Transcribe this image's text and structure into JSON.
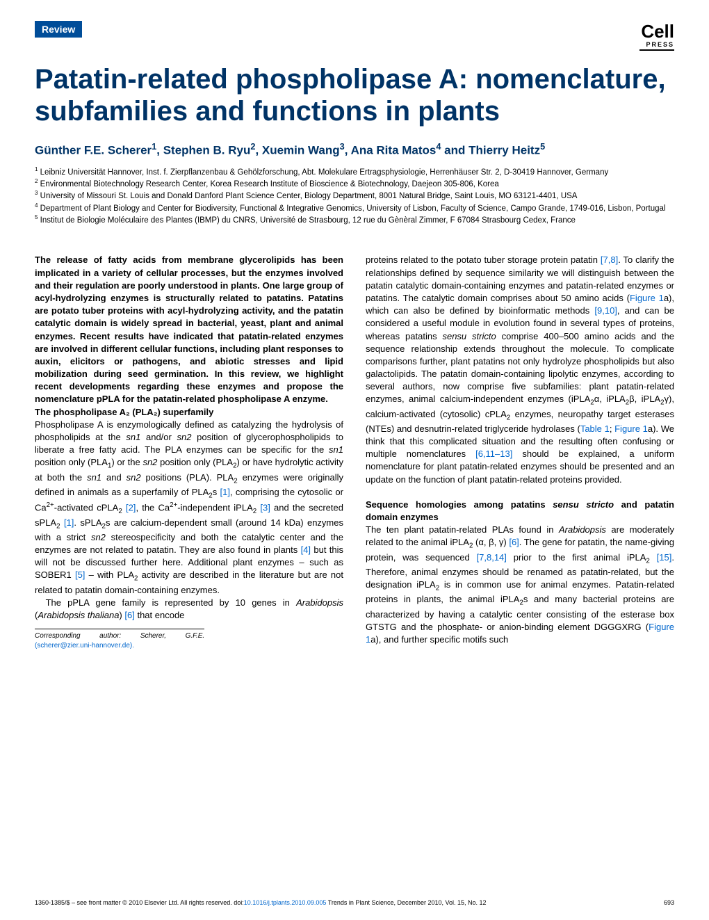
{
  "header": {
    "badge": "Review",
    "logo_main": "Cell",
    "logo_sub": "PRESS"
  },
  "title": "Patatin-related phospholipase A: nomenclature, subfamilies and functions in plants",
  "authors_html": "Günther F.E. Scherer<sup>1</sup>, Stephen B. Ryu<sup>2</sup>, Xuemin Wang<sup>3</sup>, Ana Rita Matos<sup>4</sup> and Thierry Heitz<sup>5</sup>",
  "affiliations": [
    "Leibniz Universität Hannover, Inst. f. Zierpflanzenbau & Gehölzforschung, Abt. Molekulare Ertragsphysiologie, Herrenhäuser Str. 2, D-30419 Hannover, Germany",
    "Environmental Biotechnology Research Center, Korea Research Institute of Bioscience & Biotechnology, Daejeon 305-806, Korea",
    "University of Missouri St. Louis and Donald Danford Plant Science Center, Biology Department, 8001 Natural Bridge, Saint Louis, MO 63121-4401, USA",
    "Department of Plant Biology and Center for Biodiversity, Functional & Integrative Genomics, University of Lisbon, Faculty of Science, Campo Grande, 1749-016, Lisbon, Portugal",
    "Institut de Biologie Moléculaire des Plantes (IBMP) du CNRS, Université de Strasbourg, 12 rue du Gènèral Zimmer, F 67084 Strasbourg Cedex, France"
  ],
  "abstract": "The release of fatty acids from membrane glycerolipids has been implicated in a variety of cellular processes, but the enzymes involved and their regulation are poorly understood in plants. One large group of acyl-hydrolyzing enzymes is structurally related to patatins. Patatins are potato tuber proteins with acyl-hydrolyzing activity, and the patatin catalytic domain is widely spread in bacterial, yeast, plant and animal enzymes. Recent results have indicated that patatin-related enzymes are involved in different cellular functions, including plant responses to auxin, elicitors or pathogens, and abiotic stresses and lipid mobilization during seed germination. In this review, we highlight recent developments regarding these enzymes and propose the nomenclature pPLA for the patatin-related phospholipase A enzyme.",
  "sections": {
    "s1_heading": "The phospholipase A₂ (PLA₂) superfamily",
    "s1_p1": "Phospholipase A is enzymologically defined as catalyzing the hydrolysis of phospholipids at the <i>sn1</i> and/or <i>sn2</i> position of glycerophospholipids to liberate a free fatty acid. The PLA enzymes can be specific for the <i>sn1</i> position only (PLA<sub>1</sub>) or the <i>sn2</i> position only (PLA<sub>2</sub>) or have hydrolytic activity at both the <i>sn1</i> and <i>sn2</i> positions (PLA). PLA<sub>2</sub> enzymes were originally defined in animals as a superfamily of PLA<sub>2</sub>s <span class='ref'>[1]</span>, comprising the cytosolic or Ca<sup>2+</sup>-activated cPLA<sub>2</sub> <span class='ref'>[2]</span>, the Ca<sup>2+</sup>-independent iPLA<sub>2</sub> <span class='ref'>[3]</span> and the secreted sPLA<sub>2</sub> <span class='ref'>[1]</span>. sPLA<sub>2</sub>s are calcium-dependent small (around 14 kDa) enzymes with a strict <i>sn2</i> stereospecificity and both the catalytic center and the enzymes are not related to patatin. They are also found in plants <span class='ref'>[4]</span> but this will not be discussed further here. Additional plant enzymes – such as SOBER1 <span class='ref'>[5]</span> – with PLA<sub>2</sub> activity are described in the literature but are not related to patatin domain-containing enzymes.",
    "s1_p2": "The pPLA gene family is represented by 10 genes in <i>Arabidopsis</i> (<i>Arabidopsis thaliana</i>) <span class='ref'>[6]</span> that encode",
    "col2_p1": "proteins related to the potato tuber storage protein patatin <span class='ref'>[7,8]</span>. To clarify the relationships defined by sequence similarity we will distinguish between the patatin catalytic domain-containing enzymes and patatin-related enzymes or patatins. The catalytic domain comprises about 50 amino acids (<span class='ref'>Figure 1</span>a), which can also be defined by bioinformatic methods <span class='ref'>[9,10]</span>, and can be considered a useful module in evolution found in several types of proteins, whereas patatins <i>sensu stricto</i> comprise 400–500 amino acids and the sequence relationship extends throughout the molecule. To complicate comparisons further, plant patatins not only hydrolyze phospholipids but also galactolipids. The patatin domain-containing lipolytic enzymes, according to several authors, now comprise five subfamilies: plant patatin-related enzymes, animal calcium-independent enzymes (iPLA<sub>2</sub>α, iPLA<sub>2</sub>β, iPLA<sub>2</sub>γ), calcium-activated (cytosolic) cPLA<sub>2</sub> enzymes, neuropathy target esterases (NTEs) and desnutrin-related triglyceride hydrolases (<span class='ref'>Table 1</span>; <span class='ref'>Figure 1</span>a). We think that this complicated situation and the resulting often confusing or multiple nomenclatures <span class='ref'>[6,11–13]</span> should be explained, a uniform nomenclature for plant patatin-related enzymes should be presented and an update on the function of plant patatin-related proteins provided.",
    "s2_heading": "Sequence homologies among patatins <i>sensu stricto</i> and patatin domain enzymes",
    "s2_p1": "The ten plant patatin-related PLAs found in <i>Arabidopsis</i> are moderately related to the animal iPLA<sub>2</sub> (α, β, γ) <span class='ref'>[6]</span>. The gene for patatin, the name-giving protein, was sequenced <span class='ref'>[7,8,14]</span> prior to the first animal iPLA<sub>2</sub> <span class='ref'>[15]</span>. Therefore, animal enzymes should be renamed as patatin-related, but the designation iPLA<sub>2</sub> is in common use for animal enzymes. Patatin-related proteins in plants, the animal iPLA<sub>2</sub>s and many bacterial proteins are characterized by having a catalytic center consisting of the esterase box GTSTG and the phosphate- or anion-binding element DGGGXRG (<span class='ref'>Figure 1</span>a), and further specific motifs such"
  },
  "corresponding": {
    "label": "Corresponding author:",
    "name": "Scherer, G.F.E.",
    "email": "(scherer@zier.uni-hannover.de)."
  },
  "footer": {
    "left_prefix": "1360-1385/$ – see front matter © 2010 Elsevier Ltd. All rights reserved. doi:",
    "doi": "10.1016/j.tplants.2010.09.005",
    "left_suffix": " Trends in Plant Science, December 2010, Vol. 15, No. 12",
    "page": "693"
  },
  "colors": {
    "badge_bg": "#004d99",
    "title_color": "#003366",
    "link_color": "#0066cc",
    "text_color": "#000000",
    "bg": "#ffffff"
  },
  "typography": {
    "title_fontsize": 40,
    "authors_fontsize": 17,
    "affil_fontsize": 11.5,
    "body_fontsize": 13,
    "footer_fontsize": 9
  }
}
